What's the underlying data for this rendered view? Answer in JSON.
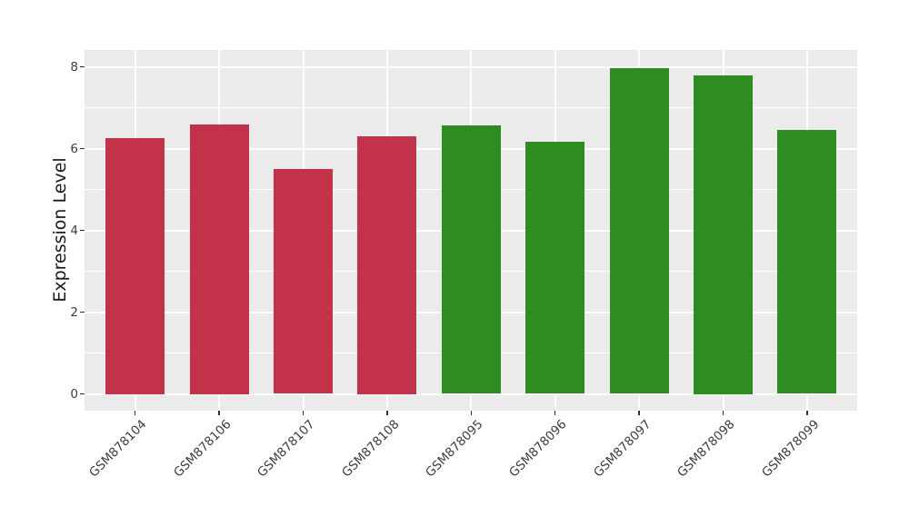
{
  "chart_data": {
    "type": "bar",
    "title": "",
    "xlabel": "",
    "ylabel": "Expression Level",
    "categories": [
      "GSM878104",
      "GSM878106",
      "GSM878107",
      "GSM878108",
      "GSM878095",
      "GSM878096",
      "GSM878097",
      "GSM878098",
      "GSM878099"
    ],
    "values": [
      6.25,
      6.6,
      5.51,
      6.3,
      6.57,
      6.17,
      7.97,
      7.8,
      6.46
    ],
    "bar_colors": [
      "#C23249",
      "#C23249",
      "#C23249",
      "#C23249",
      "#2E8C22",
      "#2E8C22",
      "#2E8C22",
      "#2E8C22",
      "#2E8C22"
    ],
    "yticks": [
      0,
      2,
      4,
      6,
      8
    ],
    "yticks_minor": [
      1,
      3,
      5,
      7
    ],
    "ylim": [
      -0.4,
      8.4
    ],
    "grid": "on",
    "legend_position": "none",
    "colors": {
      "red_group": "#C23249",
      "green_group": "#2E8C22",
      "panel_bg": "#EBEBEB",
      "grid_line": "#FFFFFF",
      "axis_text": "#3D3D3D",
      "axis_title": "#1A1A1A",
      "tick_mark": "#333333",
      "figure_bg": "#FFFFFF"
    }
  }
}
